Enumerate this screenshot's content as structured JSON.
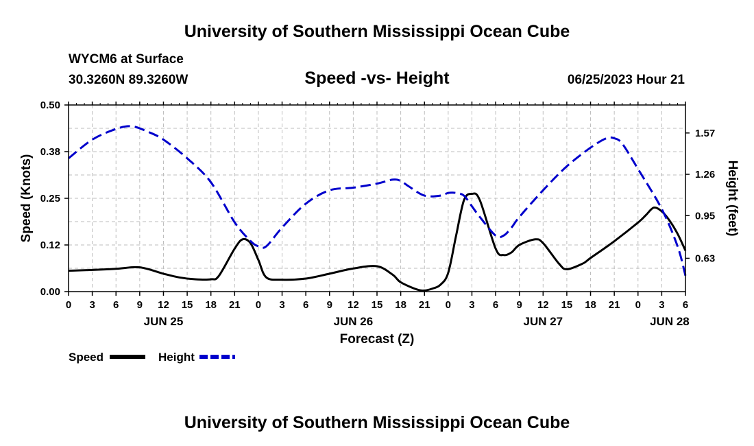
{
  "header": {
    "title_top": "University of Southern Mississippi Ocean Cube",
    "station": "WYCM6 at Surface",
    "coords": "30.3260N  89.3260W",
    "datetime": "06/25/2023 Hour 21",
    "title_bottom": "University of Southern Mississippi Ocean Cube"
  },
  "chart_data": {
    "type": "line",
    "title": "Speed -vs- Height",
    "xlabel": "Forecast (Z)",
    "ylabel": "Speed (Knots)",
    "y2label": "Height (feet)",
    "xlim": [
      0,
      78
    ],
    "ylim": [
      0,
      0.5
    ],
    "y2lim": [
      0.38,
      1.78
    ],
    "grid": true,
    "x_ticks": [
      0,
      3,
      6,
      9,
      12,
      15,
      18,
      21,
      24,
      27,
      30,
      33,
      36,
      39,
      42,
      45,
      48,
      51,
      54,
      57,
      60,
      63,
      66,
      69,
      72,
      75,
      78
    ],
    "x_tick_labels": [
      "0",
      "3",
      "6",
      "9",
      "12",
      "15",
      "18",
      "21",
      "0",
      "3",
      "6",
      "9",
      "12",
      "15",
      "18",
      "21",
      "0",
      "3",
      "6",
      "9",
      "12",
      "15",
      "18",
      "21",
      "0",
      "3",
      "6"
    ],
    "day_labels": [
      {
        "x": 12,
        "label": "JUN 25"
      },
      {
        "x": 36,
        "label": "JUN 26"
      },
      {
        "x": 60,
        "label": "JUN 27"
      },
      {
        "x": 76,
        "label": "JUN 28"
      }
    ],
    "y_ticks": [
      0,
      0.125,
      0.25,
      0.375,
      0.5
    ],
    "y_tick_labels": [
      "0.00",
      "0.12",
      "0.25",
      "0.38",
      "0.50"
    ],
    "y2_ticks": [
      0.63,
      0.95,
      1.26,
      1.57
    ],
    "y2_tick_labels": [
      "0.63",
      "0.95",
      "1.26",
      "1.57"
    ],
    "legend": [
      {
        "name": "Speed",
        "color": "#000000",
        "dashed": false
      },
      {
        "name": "Height",
        "color": "#0000cc",
        "dashed": true
      }
    ],
    "series": [
      {
        "name": "Speed",
        "axis": "left",
        "color": "#000000",
        "x": [
          0,
          3,
          6,
          9,
          12,
          14,
          16,
          18,
          19,
          21,
          22,
          23,
          24,
          25,
          27,
          30,
          33,
          36,
          39,
          41,
          42,
          44,
          45,
          46,
          47,
          48,
          49,
          50,
          51,
          52,
          54,
          55,
          56,
          57,
          59,
          60,
          62,
          63,
          65,
          66,
          69,
          72,
          73,
          74,
          75,
          76,
          77,
          78
        ],
        "values": [
          0.056,
          0.058,
          0.061,
          0.065,
          0.048,
          0.038,
          0.033,
          0.033,
          0.042,
          0.115,
          0.14,
          0.13,
          0.085,
          0.038,
          0.032,
          0.035,
          0.048,
          0.062,
          0.068,
          0.045,
          0.025,
          0.006,
          0.003,
          0.008,
          0.018,
          0.05,
          0.15,
          0.245,
          0.262,
          0.245,
          0.115,
          0.098,
          0.105,
          0.125,
          0.14,
          0.13,
          0.075,
          0.06,
          0.075,
          0.09,
          0.135,
          0.185,
          0.205,
          0.225,
          0.215,
          0.19,
          0.155,
          0.11
        ]
      },
      {
        "name": "Height",
        "axis": "right",
        "color": "#0000cc",
        "x": [
          0,
          3,
          6,
          8,
          10,
          12,
          15,
          18,
          21,
          23,
          24,
          25,
          27,
          30,
          33,
          36,
          39,
          41,
          42,
          43,
          45,
          47,
          48,
          49,
          50,
          51,
          52,
          54,
          55,
          56,
          57,
          60,
          63,
          66,
          68,
          69,
          70,
          72,
          75,
          77,
          78
        ],
        "values": [
          1.38,
          1.52,
          1.6,
          1.62,
          1.58,
          1.52,
          1.38,
          1.2,
          0.9,
          0.76,
          0.72,
          0.72,
          0.86,
          1.04,
          1.14,
          1.16,
          1.19,
          1.22,
          1.21,
          1.17,
          1.1,
          1.1,
          1.12,
          1.12,
          1.1,
          1.02,
          0.94,
          0.8,
          0.8,
          0.86,
          0.94,
          1.14,
          1.32,
          1.46,
          1.53,
          1.53,
          1.49,
          1.3,
          1.0,
          0.72,
          0.5
        ]
      }
    ]
  }
}
